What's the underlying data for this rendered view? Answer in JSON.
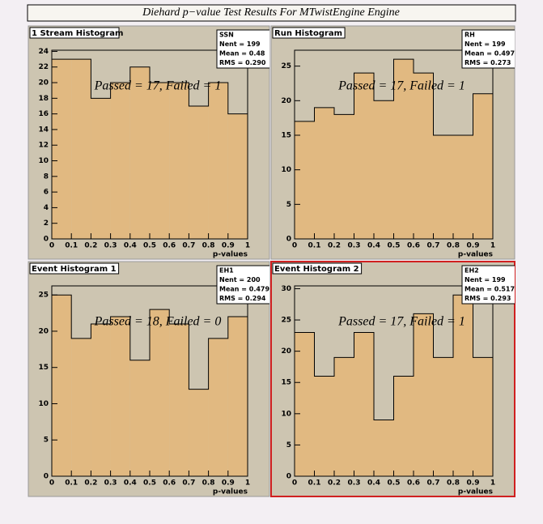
{
  "title": "Diehard p−value Test Results For MTwistEngine Engine",
  "chart_data": [
    {
      "type": "histogram",
      "title": "1 Stream Histogram",
      "annotation": "Passed = 17, Failed = 1",
      "xlabel": "p-values",
      "stats": {
        "name": "SSN",
        "entries": "Nent = 199",
        "mean": "Mean =  0.48",
        "rms": "RMS  = 0.290"
      },
      "bins": [
        0,
        0.1,
        0.2,
        0.3,
        0.4,
        0.5,
        0.6,
        0.7,
        0.8,
        0.9,
        1
      ],
      "values": [
        23,
        23,
        18,
        20,
        22,
        20,
        20,
        17,
        20,
        16
      ],
      "color": "#e1b981",
      "xlim": [
        0,
        1
      ],
      "xticks": [
        0,
        0.1,
        0.2,
        0.3,
        0.4,
        0.5,
        0.6,
        0.7,
        0.8,
        0.9,
        1
      ],
      "ylim": [
        0,
        24.15
      ],
      "yticks": [
        0,
        2,
        4,
        6,
        8,
        10,
        12,
        14,
        16,
        18,
        20,
        22,
        24
      ]
    },
    {
      "type": "histogram",
      "title": "Run Histogram",
      "annotation": "Passed = 17, Failed = 1",
      "xlabel": "p-values",
      "stats": {
        "name": "RH",
        "entries": "Nent = 199",
        "mean": "Mean =  0.497",
        "rms": "RMS  = 0.273"
      },
      "bins": [
        0,
        0.1,
        0.2,
        0.3,
        0.4,
        0.5,
        0.6,
        0.7,
        0.8,
        0.9,
        1
      ],
      "values": [
        17,
        19,
        18,
        24,
        20,
        26,
        24,
        15,
        15,
        21
      ],
      "color": "#e1b981",
      "xlim": [
        0,
        1
      ],
      "xticks": [
        0,
        0.1,
        0.2,
        0.3,
        0.4,
        0.5,
        0.6,
        0.7,
        0.8,
        0.9,
        1
      ],
      "ylim": [
        0,
        27.3
      ],
      "yticks": [
        0,
        5,
        10,
        15,
        20,
        25
      ]
    },
    {
      "type": "histogram",
      "title": "Event Histogram 1",
      "annotation": "Passed = 18, Failed = 0",
      "xlabel": "p-values",
      "stats": {
        "name": "EH1",
        "entries": "Nent = 200",
        "mean": "Mean =  0.479",
        "rms": "RMS  = 0.294"
      },
      "bins": [
        0,
        0.1,
        0.2,
        0.3,
        0.4,
        0.5,
        0.6,
        0.7,
        0.8,
        0.9,
        1
      ],
      "values": [
        25,
        19,
        21,
        22,
        16,
        23,
        21,
        12,
        19,
        22
      ],
      "color": "#e1b981",
      "xlim": [
        0,
        1
      ],
      "xticks": [
        0,
        0.1,
        0.2,
        0.3,
        0.4,
        0.5,
        0.6,
        0.7,
        0.8,
        0.9,
        1
      ],
      "ylim": [
        0,
        26.25
      ],
      "yticks": [
        0,
        5,
        10,
        15,
        20,
        25
      ]
    },
    {
      "type": "histogram",
      "title": "Event Histogram 2",
      "annotation": "Passed = 17, Failed = 1",
      "xlabel": "p-values",
      "stats": {
        "name": "EH2",
        "entries": "Nent = 199",
        "mean": "Mean =  0.517",
        "rms": "RMS  = 0.293"
      },
      "bins": [
        0,
        0.1,
        0.2,
        0.3,
        0.4,
        0.5,
        0.6,
        0.7,
        0.8,
        0.9,
        1
      ],
      "values": [
        23,
        16,
        19,
        23,
        9,
        16,
        26,
        19,
        29,
        19
      ],
      "color": "#e1b981",
      "xlim": [
        0,
        1
      ],
      "xticks": [
        0,
        0.1,
        0.2,
        0.3,
        0.4,
        0.5,
        0.6,
        0.7,
        0.8,
        0.9,
        1
      ],
      "ylim": [
        0,
        30.45
      ],
      "yticks": [
        0,
        5,
        10,
        15,
        20,
        25,
        30
      ]
    }
  ]
}
